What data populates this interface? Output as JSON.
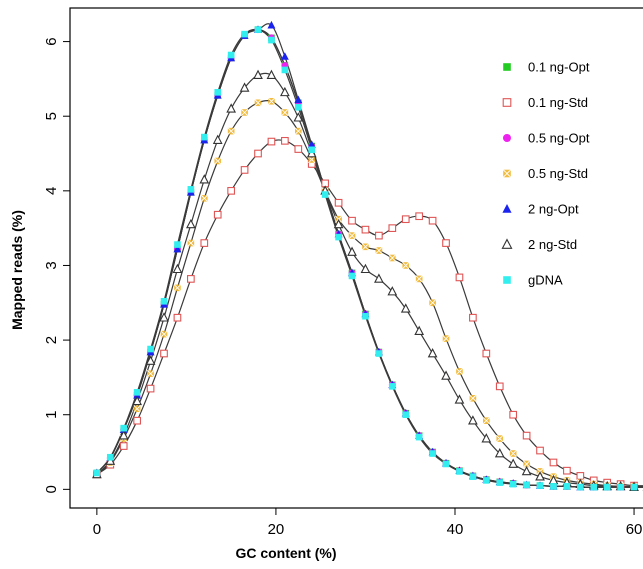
{
  "chart_data": {
    "type": "line",
    "xlabel": "GC content (%)",
    "ylabel": "Mapped reads (%)",
    "xlim": [
      -3,
      61
    ],
    "ylim": [
      -0.25,
      6.45
    ],
    "x_ticks": [
      0,
      20,
      40,
      60
    ],
    "y_ticks": [
      0,
      1,
      2,
      3,
      4,
      5,
      6
    ],
    "legend_position": "top-right",
    "grid": false,
    "x": [
      0,
      1.5,
      3,
      4.5,
      6,
      7.5,
      9,
      10.5,
      12,
      13.5,
      15,
      16.5,
      18,
      19.5,
      21,
      22.5,
      24,
      25.5,
      27,
      28.5,
      30,
      31.5,
      33,
      34.5,
      36,
      37.5,
      39,
      40.5,
      42,
      43.5,
      45,
      46.5,
      48,
      49.5,
      51,
      52.5,
      54,
      55.5,
      57,
      58.5,
      60,
      61.5
    ],
    "series": [
      {
        "name": "0.1 ng-Opt",
        "marker": "square-filled",
        "color": "#22cc22",
        "values": [
          0.22,
          0.42,
          0.8,
          1.26,
          1.84,
          2.48,
          3.22,
          3.98,
          4.68,
          5.28,
          5.78,
          6.08,
          6.16,
          6.05,
          5.68,
          5.18,
          4.6,
          4.0,
          3.42,
          2.9,
          2.35,
          1.84,
          1.4,
          1.02,
          0.72,
          0.5,
          0.35,
          0.25,
          0.18,
          0.13,
          0.1,
          0.08,
          0.06,
          0.05,
          0.04,
          0.04,
          0.03,
          0.03,
          0.03,
          0.03,
          0.03,
          0.03
        ]
      },
      {
        "name": "0.1 ng-Std",
        "marker": "square-open",
        "color": "#e05555",
        "values": [
          0.2,
          0.33,
          0.58,
          0.92,
          1.35,
          1.82,
          2.3,
          2.82,
          3.3,
          3.68,
          4.0,
          4.28,
          4.5,
          4.66,
          4.67,
          4.56,
          4.36,
          4.1,
          3.84,
          3.6,
          3.48,
          3.4,
          3.5,
          3.62,
          3.66,
          3.6,
          3.3,
          2.84,
          2.3,
          1.82,
          1.38,
          1.0,
          0.72,
          0.52,
          0.36,
          0.25,
          0.18,
          0.12,
          0.09,
          0.07,
          0.05,
          0.05
        ]
      },
      {
        "name": "0.5 ng-Opt",
        "marker": "circle-filled",
        "color": "#ee22ee",
        "values": [
          0.22,
          0.42,
          0.8,
          1.26,
          1.84,
          2.48,
          3.22,
          3.98,
          4.68,
          5.28,
          5.78,
          6.08,
          6.16,
          6.05,
          5.68,
          5.18,
          4.6,
          4.0,
          3.42,
          2.9,
          2.35,
          1.84,
          1.4,
          1.02,
          0.72,
          0.5,
          0.35,
          0.25,
          0.18,
          0.13,
          0.1,
          0.08,
          0.06,
          0.05,
          0.04,
          0.04,
          0.03,
          0.03,
          0.03,
          0.03,
          0.03,
          0.03
        ]
      },
      {
        "name": "0.5 ng-Std",
        "marker": "x-square",
        "color": "#f0b020",
        "values": [
          0.2,
          0.36,
          0.68,
          1.08,
          1.55,
          2.08,
          2.7,
          3.3,
          3.9,
          4.4,
          4.8,
          5.05,
          5.18,
          5.2,
          5.05,
          4.8,
          4.42,
          4.0,
          3.62,
          3.4,
          3.25,
          3.2,
          3.1,
          3.0,
          2.82,
          2.5,
          2.02,
          1.58,
          1.22,
          0.92,
          0.68,
          0.48,
          0.34,
          0.24,
          0.17,
          0.12,
          0.09,
          0.07,
          0.05,
          0.04,
          0.04,
          0.04
        ]
      },
      {
        "name": "2 ng-Opt",
        "marker": "triangle-filled",
        "color": "#1a22ee",
        "values": [
          0.22,
          0.42,
          0.8,
          1.26,
          1.84,
          2.48,
          3.22,
          3.98,
          4.68,
          5.28,
          5.78,
          6.08,
          6.16,
          6.22,
          5.8,
          5.22,
          4.62,
          4.0,
          3.42,
          2.9,
          2.35,
          1.84,
          1.4,
          1.02,
          0.72,
          0.5,
          0.35,
          0.25,
          0.18,
          0.13,
          0.1,
          0.08,
          0.06,
          0.05,
          0.04,
          0.04,
          0.03,
          0.03,
          0.03,
          0.03,
          0.03,
          0.03
        ]
      },
      {
        "name": "2 ng-Std",
        "marker": "triangle-open",
        "color": "#333333",
        "values": [
          0.2,
          0.38,
          0.72,
          1.18,
          1.72,
          2.3,
          2.95,
          3.55,
          4.15,
          4.68,
          5.1,
          5.38,
          5.55,
          5.55,
          5.32,
          4.98,
          4.5,
          4.0,
          3.55,
          3.18,
          2.95,
          2.82,
          2.65,
          2.42,
          2.12,
          1.82,
          1.52,
          1.2,
          0.92,
          0.68,
          0.48,
          0.34,
          0.24,
          0.17,
          0.12,
          0.09,
          0.07,
          0.05,
          0.04,
          0.04,
          0.03,
          0.03
        ]
      },
      {
        "name": "gDNA",
        "marker": "square-filled",
        "color": "#33eeee",
        "values": [
          0.22,
          0.43,
          0.82,
          1.3,
          1.88,
          2.52,
          3.28,
          4.02,
          4.72,
          5.32,
          5.82,
          6.1,
          6.16,
          6.02,
          5.62,
          5.12,
          4.55,
          3.95,
          3.38,
          2.86,
          2.32,
          1.82,
          1.38,
          1.0,
          0.7,
          0.48,
          0.34,
          0.24,
          0.17,
          0.12,
          0.09,
          0.07,
          0.06,
          0.05,
          0.04,
          0.04,
          0.03,
          0.03,
          0.03,
          0.03,
          0.03,
          0.03
        ]
      }
    ]
  }
}
